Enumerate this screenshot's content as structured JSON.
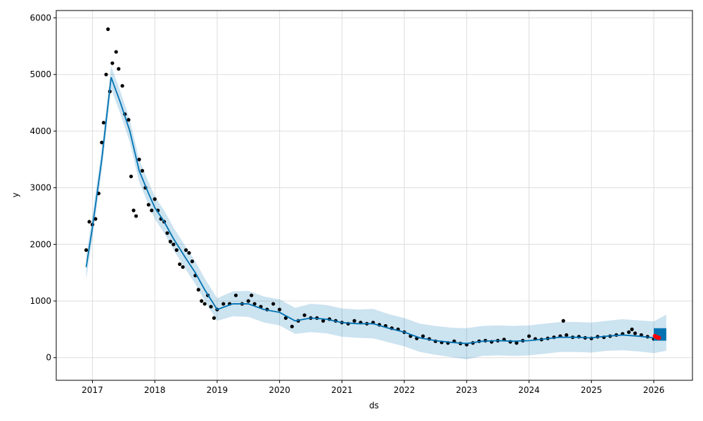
{
  "chart_data": {
    "type": "line",
    "title": "",
    "xlabel": "ds",
    "ylabel": "y",
    "xlim": [
      2016.42,
      2026.62
    ],
    "ylim": [
      -400,
      6130
    ],
    "grid": true,
    "x_ticks": [
      "2017",
      "2018",
      "2019",
      "2020",
      "2021",
      "2022",
      "2023",
      "2024",
      "2025",
      "2026"
    ],
    "y_ticks": [
      0,
      1000,
      2000,
      3000,
      4000,
      5000,
      6000
    ],
    "colors": {
      "forecast": "#0072B2",
      "band": "#0072B2",
      "actual": "#000000",
      "highlight": "#ff0000"
    },
    "forecast": {
      "x": [
        2016.9,
        2017.0,
        2017.15,
        2017.3,
        2017.45,
        2017.6,
        2017.75,
        2017.9,
        2018.0,
        2018.15,
        2018.3,
        2018.5,
        2018.65,
        2018.8,
        2019.0,
        2019.25,
        2019.5,
        2019.75,
        2020.0,
        2020.25,
        2020.5,
        2020.75,
        2021.0,
        2021.25,
        2021.5,
        2021.75,
        2022.0,
        2022.25,
        2022.5,
        2022.75,
        2023.0,
        2023.25,
        2023.5,
        2023.75,
        2024.0,
        2024.25,
        2024.5,
        2024.75,
        2025.0,
        2025.25,
        2025.5,
        2025.75,
        2026.0,
        2026.2
      ],
      "yhat": [
        1600,
        2300,
        3500,
        4950,
        4500,
        4000,
        3300,
        2900,
        2650,
        2400,
        2100,
        1750,
        1500,
        1200,
        850,
        950,
        950,
        850,
        800,
        650,
        700,
        680,
        620,
        600,
        600,
        520,
        450,
        350,
        300,
        270,
        250,
        290,
        300,
        290,
        300,
        330,
        360,
        360,
        350,
        380,
        400,
        380,
        350,
        420
      ],
      "lower": [
        1380,
        2100,
        3300,
        4750,
        4300,
        3800,
        3100,
        2700,
        2450,
        2200,
        1900,
        1550,
        1300,
        1000,
        650,
        730,
        720,
        620,
        570,
        420,
        450,
        430,
        370,
        350,
        340,
        270,
        200,
        100,
        50,
        10,
        -30,
        30,
        40,
        30,
        40,
        70,
        100,
        100,
        90,
        120,
        130,
        110,
        80,
        120
      ],
      "upper": [
        1800,
        2500,
        3700,
        5150,
        4700,
        4200,
        3500,
        3100,
        2850,
        2600,
        2300,
        1950,
        1700,
        1400,
        1050,
        1170,
        1180,
        1080,
        1030,
        880,
        950,
        930,
        870,
        850,
        860,
        770,
        700,
        600,
        560,
        530,
        520,
        560,
        570,
        560,
        570,
        600,
        630,
        630,
        620,
        650,
        680,
        660,
        640,
        760
      ]
    },
    "actual": {
      "x": [
        2016.9,
        2016.95,
        2017.0,
        2017.05,
        2017.1,
        2017.15,
        2017.18,
        2017.22,
        2017.25,
        2017.28,
        2017.32,
        2017.38,
        2017.42,
        2017.48,
        2017.52,
        2017.58,
        2017.62,
        2017.66,
        2017.7,
        2017.75,
        2017.8,
        2017.85,
        2017.9,
        2017.95,
        2018.0,
        2018.05,
        2018.1,
        2018.15,
        2018.2,
        2018.25,
        2018.3,
        2018.35,
        2018.4,
        2018.45,
        2018.5,
        2018.55,
        2018.6,
        2018.65,
        2018.7,
        2018.75,
        2018.8,
        2018.85,
        2018.9,
        2018.95,
        2019.0,
        2019.1,
        2019.2,
        2019.3,
        2019.4,
        2019.5,
        2019.55,
        2019.6,
        2019.7,
        2019.8,
        2019.9,
        2020.0,
        2020.1,
        2020.2,
        2020.3,
        2020.4,
        2020.5,
        2020.6,
        2020.7,
        2020.8,
        2020.9,
        2021.0,
        2021.1,
        2021.2,
        2021.3,
        2021.4,
        2021.5,
        2021.6,
        2021.7,
        2021.8,
        2021.9,
        2022.0,
        2022.1,
        2022.2,
        2022.3,
        2022.4,
        2022.5,
        2022.6,
        2022.7,
        2022.8,
        2022.9,
        2023.0,
        2023.1,
        2023.2,
        2023.3,
        2023.4,
        2023.5,
        2023.6,
        2023.7,
        2023.8,
        2023.9,
        2024.0,
        2024.1,
        2024.2,
        2024.3,
        2024.4,
        2024.5,
        2024.55,
        2024.6,
        2024.7,
        2024.8,
        2024.9,
        2025.0,
        2025.1,
        2025.2,
        2025.3,
        2025.4,
        2025.5,
        2025.6,
        2025.65,
        2025.7,
        2025.8,
        2025.9,
        2026.0
      ],
      "y": [
        1900,
        2400,
        2350,
        2450,
        2900,
        3800,
        4150,
        5000,
        5800,
        4700,
        5200,
        5400,
        5100,
        4800,
        4300,
        4200,
        3200,
        2600,
        2500,
        3500,
        3300,
        3000,
        2700,
        2600,
        2800,
        2600,
        2450,
        2400,
        2200,
        2050,
        2000,
        1900,
        1650,
        1600,
        1900,
        1850,
        1700,
        1450,
        1200,
        1000,
        950,
        1100,
        900,
        700,
        850,
        950,
        950,
        1100,
        950,
        1000,
        1100,
        950,
        900,
        850,
        950,
        850,
        700,
        550,
        650,
        750,
        700,
        700,
        650,
        680,
        650,
        620,
        600,
        650,
        620,
        600,
        620,
        580,
        560,
        520,
        500,
        450,
        380,
        340,
        380,
        330,
        290,
        270,
        260,
        290,
        250,
        230,
        260,
        290,
        300,
        280,
        300,
        320,
        280,
        260,
        300,
        380,
        330,
        320,
        340,
        360,
        380,
        650,
        400,
        360,
        370,
        350,
        340,
        370,
        360,
        380,
        400,
        420,
        450,
        500,
        430,
        400,
        370,
        330
      ]
    },
    "highlight": {
      "x": [
        2026.02,
        2026.05,
        2026.08
      ],
      "y": [
        380,
        360,
        350
      ]
    }
  }
}
